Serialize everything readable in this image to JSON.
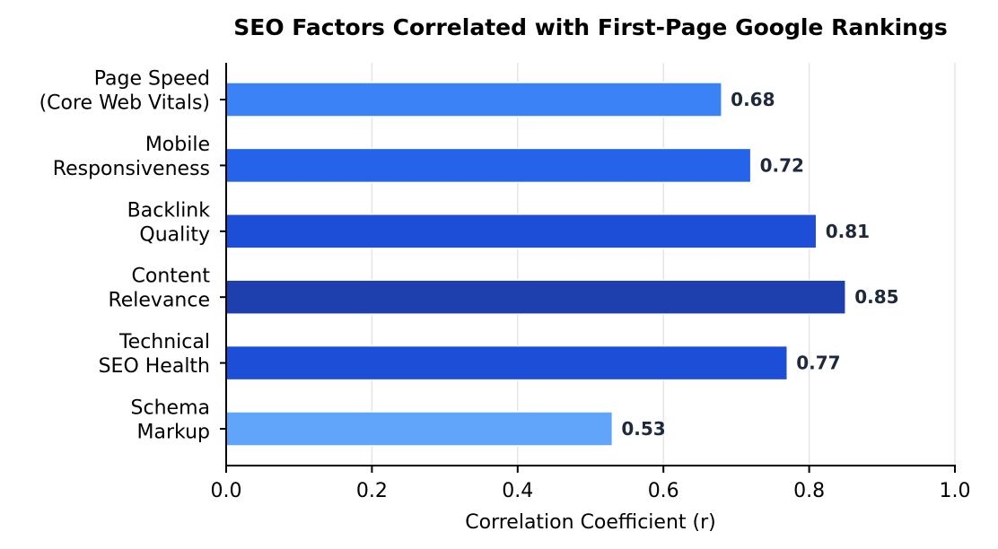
{
  "chart_data": {
    "type": "bar",
    "orientation": "horizontal",
    "title": "SEO Factors Correlated with First-Page Google Rankings",
    "xlabel": "Correlation Coefficient (r)",
    "ylabel": "",
    "xlim": [
      0,
      1.0
    ],
    "xticks": [
      "0.0",
      "0.2",
      "0.4",
      "0.6",
      "0.8",
      "1.0"
    ],
    "grid": "x",
    "categories": [
      [
        "Page Speed",
        "(Core Web Vitals)"
      ],
      [
        "Mobile",
        "Responsiveness"
      ],
      [
        "Backlink",
        "Quality"
      ],
      [
        "Content",
        "Relevance"
      ],
      [
        "Technical",
        "SEO Health"
      ],
      [
        "Schema",
        "Markup"
      ]
    ],
    "values": [
      0.68,
      0.72,
      0.81,
      0.85,
      0.77,
      0.53
    ],
    "value_labels": [
      "0.68",
      "0.72",
      "0.81",
      "0.85",
      "0.77",
      "0.53"
    ],
    "colors": [
      "#3b82f6",
      "#2563eb",
      "#1d4ed8",
      "#1e40af",
      "#1d4ed8",
      "#60a5fa"
    ]
  }
}
